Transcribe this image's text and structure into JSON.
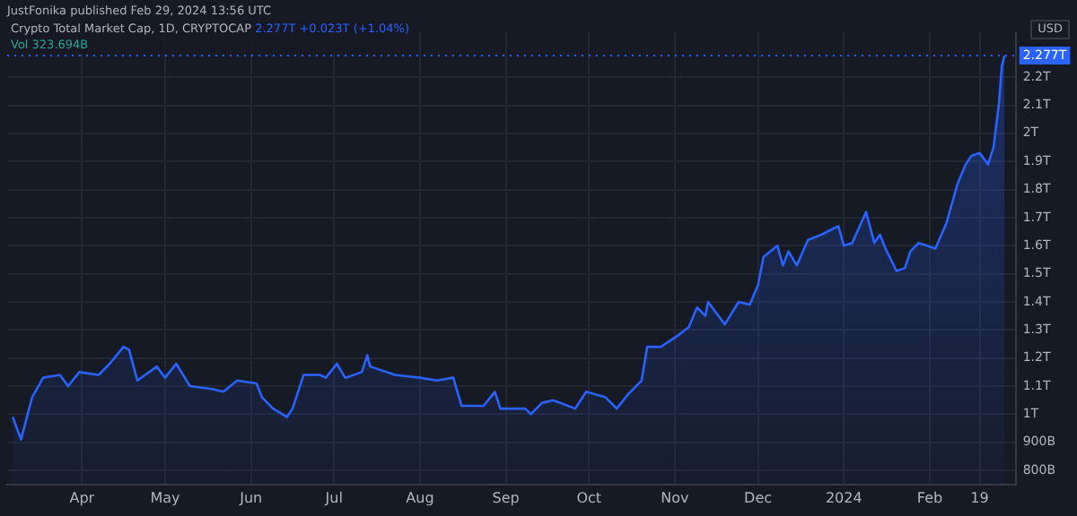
{
  "chart_data": {
    "type": "area",
    "title": "Crypto Total Market Cap, 1D, CRYPTOCAP",
    "subtitle": "2.277T +0.023T (+1.04%)",
    "ylabel": "USD",
    "annotations": [
      "JustFonika published Feb 29, 2024 13:56 UTC",
      "Vol 323.694B"
    ],
    "x": [
      "2023-03-07",
      "2023-03-10",
      "2023-03-14",
      "2023-03-18",
      "2023-03-24",
      "2023-03-27",
      "2023-03-31",
      "2023-04-07",
      "2023-04-11",
      "2023-04-16",
      "2023-04-18",
      "2023-04-21",
      "2023-04-28",
      "2023-05-01",
      "2023-05-05",
      "2023-05-10",
      "2023-05-18",
      "2023-05-22",
      "2023-05-27",
      "2023-06-03",
      "2023-06-05",
      "2023-06-09",
      "2023-06-14",
      "2023-06-16",
      "2023-06-20",
      "2023-06-26",
      "2023-06-28",
      "2023-07-02",
      "2023-07-05",
      "2023-07-11",
      "2023-07-13",
      "2023-07-14",
      "2023-07-23",
      "2023-08-01",
      "2023-08-07",
      "2023-08-13",
      "2023-08-16",
      "2023-08-24",
      "2023-08-28",
      "2023-08-30",
      "2023-09-08",
      "2023-09-10",
      "2023-09-14",
      "2023-09-18",
      "2023-09-26",
      "2023-09-30",
      "2023-10-07",
      "2023-10-11",
      "2023-10-15",
      "2023-10-20",
      "2023-10-22",
      "2023-10-27",
      "2023-11-02",
      "2023-11-06",
      "2023-11-09",
      "2023-11-12",
      "2023-11-13",
      "2023-11-19",
      "2023-11-24",
      "2023-11-28",
      "2023-12-01",
      "2023-12-03",
      "2023-12-08",
      "2023-12-10",
      "2023-12-12",
      "2023-12-15",
      "2023-12-19",
      "2023-12-24",
      "2023-12-30",
      "2024-01-01",
      "2024-01-04",
      "2024-01-09",
      "2024-01-12",
      "2024-01-14",
      "2024-01-16",
      "2024-01-20",
      "2024-01-23",
      "2024-01-25",
      "2024-01-28",
      "2024-01-31",
      "2024-02-03",
      "2024-02-07",
      "2024-02-11",
      "2024-02-14",
      "2024-02-16",
      "2024-02-19",
      "2024-02-22",
      "2024-02-24",
      "2024-02-26",
      "2024-02-27",
      "2024-02-28"
    ],
    "series": [
      {
        "color": "#2962ff",
        "values": [
          990000000000,
          910000000000,
          1060000000000,
          1130000000000,
          1140000000000,
          1100000000000,
          1150000000000,
          1140000000000,
          1180000000000,
          1240000000000,
          1230000000000,
          1120000000000,
          1170000000000,
          1130000000000,
          1180000000000,
          1100000000000,
          1090000000000,
          1080000000000,
          1120000000000,
          1110000000000,
          1060000000000,
          1020000000000,
          990000000000,
          1020000000000,
          1140000000000,
          1140000000000,
          1130000000000,
          1180000000000,
          1130000000000,
          1150000000000,
          1210000000000,
          1170000000000,
          1140000000000,
          1130000000000,
          1120000000000,
          1130000000000,
          1030000000000,
          1030000000000,
          1080000000000,
          1020000000000,
          1020000000000,
          1000000000000,
          1040000000000,
          1050000000000,
          1020000000000,
          1080000000000,
          1060000000000,
          1020000000000,
          1070000000000,
          1120000000000,
          1240000000000,
          1240000000000,
          1280000000000,
          1310000000000,
          1380000000000,
          1350000000000,
          1400000000000,
          1320000000000,
          1400000000000,
          1390000000000,
          1460000000000,
          1560000000000,
          1600000000000,
          1530000000000,
          1580000000000,
          1530000000000,
          1620000000000,
          1640000000000,
          1670000000000,
          1600000000000,
          1610000000000,
          1720000000000,
          1610000000000,
          1640000000000,
          1590000000000,
          1510000000000,
          1520000000000,
          1580000000000,
          1610000000000,
          1600000000000,
          1590000000000,
          1680000000000,
          1820000000000,
          1890000000000,
          1920000000000,
          1930000000000,
          1890000000000,
          1950000000000,
          2110000000000,
          2240000000000,
          2277000000000
        ]
      }
    ],
    "xlim": [
      "2023-03-05",
      "2024-03-03"
    ],
    "xticks": [
      {
        "value": "2023-04-01",
        "label": "Apr"
      },
      {
        "value": "2023-05-01",
        "label": "May"
      },
      {
        "value": "2023-06-01",
        "label": "Jun"
      },
      {
        "value": "2023-07-01",
        "label": "Jul"
      },
      {
        "value": "2023-08-01",
        "label": "Aug"
      },
      {
        "value": "2023-09-01",
        "label": "Sep"
      },
      {
        "value": "2023-10-01",
        "label": "Oct"
      },
      {
        "value": "2023-11-01",
        "label": "Nov"
      },
      {
        "value": "2023-12-01",
        "label": "Dec"
      },
      {
        "value": "2024-01-01",
        "label": "2024"
      },
      {
        "value": "2024-02-01",
        "label": "Feb"
      },
      {
        "value": "2024-02-19",
        "label": "19"
      }
    ],
    "ylim": [
      750000000000,
      2360000000000
    ],
    "yticks": [
      {
        "value": 800000000000,
        "label": "800B"
      },
      {
        "value": 900000000000,
        "label": "900B"
      },
      {
        "value": 1000000000000,
        "label": "1T"
      },
      {
        "value": 1100000000000,
        "label": "1.1T"
      },
      {
        "value": 1200000000000,
        "label": "1.2T"
      },
      {
        "value": 1300000000000,
        "label": "1.3T"
      },
      {
        "value": 1400000000000,
        "label": "1.4T"
      },
      {
        "value": 1500000000000,
        "label": "1.5T"
      },
      {
        "value": 1600000000000,
        "label": "1.6T"
      },
      {
        "value": 1700000000000,
        "label": "1.7T"
      },
      {
        "value": 1800000000000,
        "label": "1.8T"
      },
      {
        "value": 1900000000000,
        "label": "1.9T"
      },
      {
        "value": 2000000000000,
        "label": "2T"
      },
      {
        "value": 2100000000000,
        "label": "2.1T"
      },
      {
        "value": 2200000000000,
        "label": "2.2T"
      }
    ],
    "ref_lines": [
      {
        "axis": "y",
        "value": 2277000000000,
        "label": "2.277T",
        "color": "#2962ff",
        "line_style": "dotted"
      }
    ],
    "grid": true,
    "legend": false,
    "marker": "none",
    "line_style": "solid"
  }
}
